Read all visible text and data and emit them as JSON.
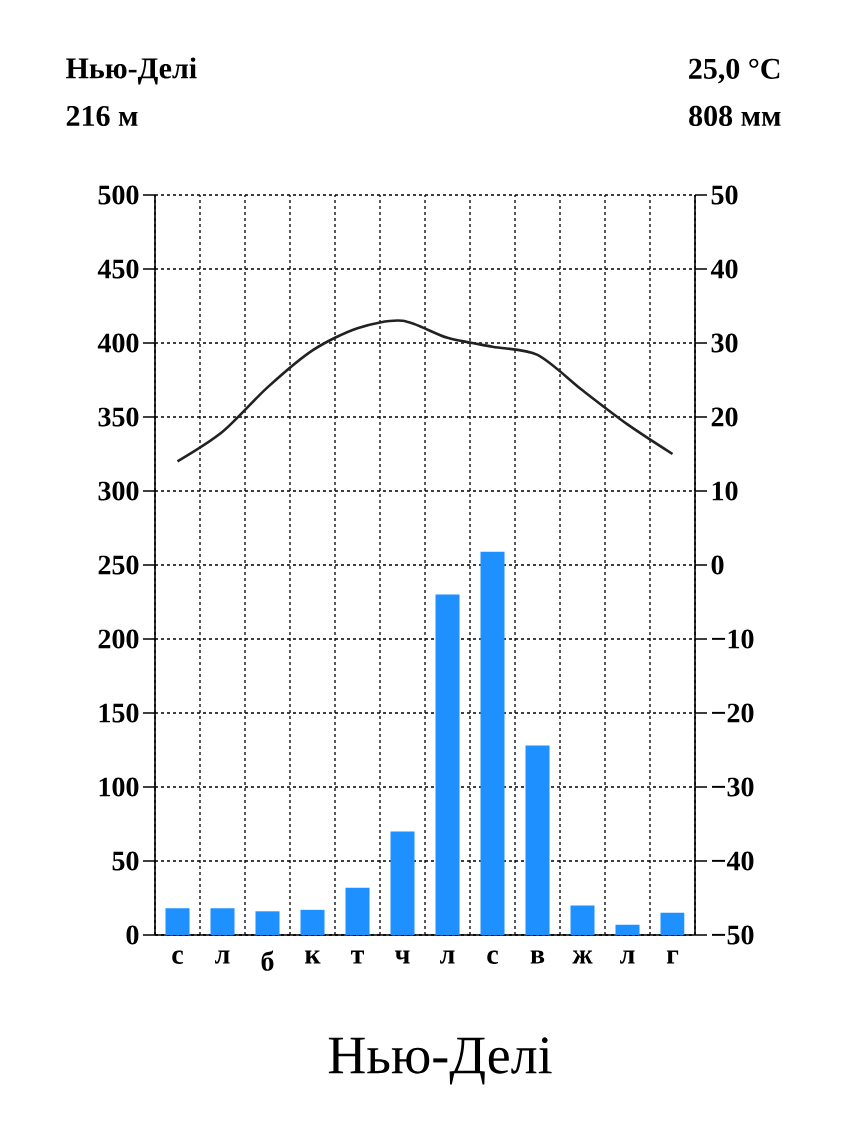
{
  "chart_data": {
    "type": "bar",
    "title": "Нью-Делі",
    "annotations": [
      "Нью-Делі",
      "216 м",
      "25,0 °C",
      "808 мм"
    ],
    "categories": [
      "с",
      "л",
      "б",
      "к",
      "т",
      "ч",
      "л",
      "с",
      "в",
      "ж",
      "л",
      "г"
    ],
    "series": [
      {
        "color": "#1e90ff",
        "values": [
          18,
          18,
          16,
          17,
          32,
          70,
          230,
          259,
          128,
          20,
          7,
          15
        ]
      },
      {
        "type": "line",
        "axis": "y2",
        "color": "#222222",
        "values": [
          14,
          18,
          24,
          29,
          32,
          33,
          30.7,
          29.5,
          28.4,
          23.6,
          19,
          15
        ]
      }
    ],
    "ylim": [
      0,
      500
    ],
    "yticks": [
      0,
      50,
      100,
      150,
      200,
      250,
      300,
      350,
      400,
      450,
      500
    ],
    "y2lim": [
      -50,
      50
    ],
    "y2ticks": [
      {
        "value": -50,
        "label": "−50"
      },
      {
        "value": -40,
        "label": "−40"
      },
      {
        "value": -30,
        "label": "−30"
      },
      {
        "value": -20,
        "label": "−20"
      },
      {
        "value": -10,
        "label": "−10"
      },
      0,
      10,
      20,
      30,
      40,
      50
    ],
    "grid": true
  }
}
